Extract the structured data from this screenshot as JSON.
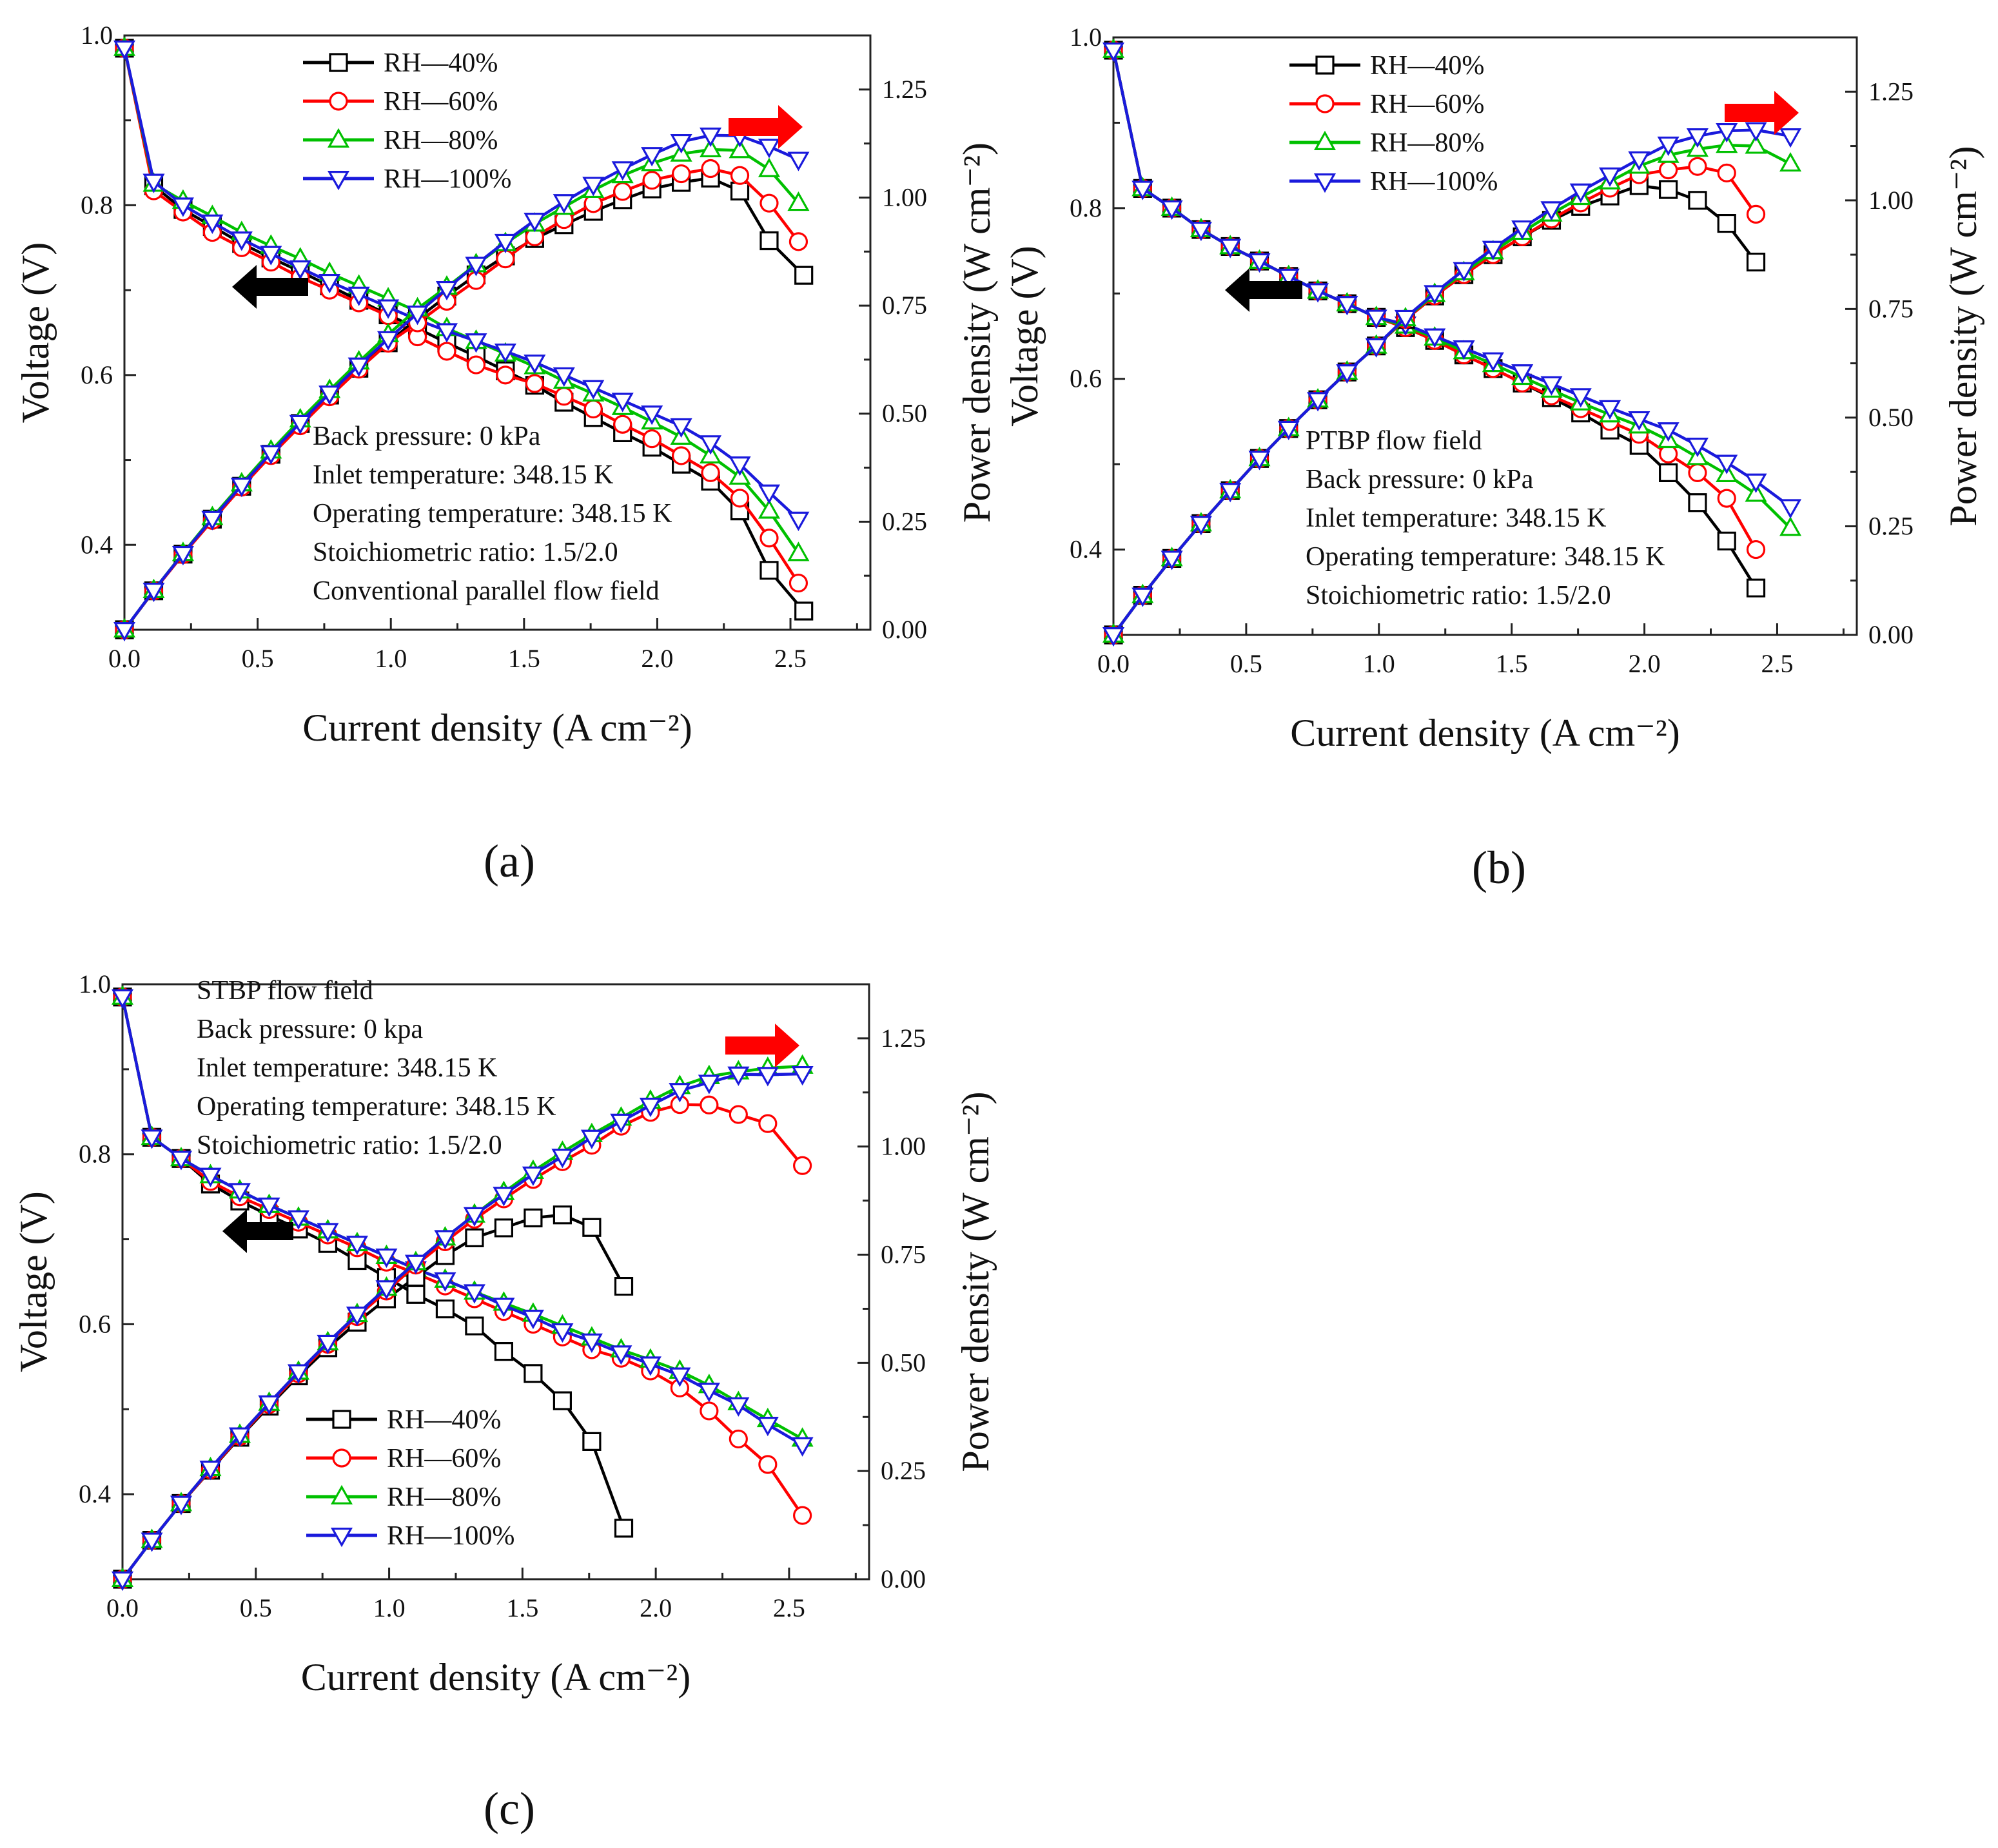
{
  "colors": {
    "RH—40%": "#000000",
    "RH—60%": "#ff0000",
    "RH—80%": "#00c000",
    "RH—100%": "#1a1adc",
    "arrow_left": "#000000",
    "arrow_right": "#ff0000"
  },
  "markers": {
    "RH—40%": "square",
    "RH—60%": "circle",
    "RH—80%": "triangle-up",
    "RH—100%": "triangle-down"
  },
  "chart_data": [
    {
      "type": "line",
      "panel_label": "(a)",
      "xlabel": "Current density (A cm⁻²)",
      "ylabel_left": "Voltage (V)",
      "ylabel_right": "Power density (W cm⁻²)",
      "xlim": [
        0,
        2.8
      ],
      "ylim_left": [
        0.3,
        1.0
      ],
      "ylim_right": [
        0,
        1.375
      ],
      "xticks": [
        "0.0",
        "0.5",
        "1.0",
        "1.5",
        "2.0",
        "2.5"
      ],
      "yticks_left": [
        "0.4",
        "0.6",
        "0.8",
        "1.0"
      ],
      "yticks_right": [
        "0.00",
        "0.25",
        "0.50",
        "0.75",
        "1.00",
        "1.25"
      ],
      "legend_position": "top-left",
      "annotation": [
        "Back pressure: 0 kPa",
        "Inlet temperature: 348.15 K",
        "Operating temperature: 348.15 K",
        "Stoichiometric ratio: 1.5/2.0",
        "Conventional parallel flow field"
      ],
      "x": [
        0.0,
        0.11,
        0.22,
        0.33,
        0.44,
        0.55,
        0.66,
        0.77,
        0.88,
        0.99,
        1.1,
        1.21,
        1.32,
        1.43,
        1.54,
        1.65,
        1.76,
        1.87,
        1.98,
        2.09,
        2.2,
        2.31,
        2.42,
        2.53
      ],
      "x_per_series": {
        "RH—40%": [
          0.0,
          0.11,
          0.22,
          0.33,
          0.44,
          0.55,
          0.66,
          0.77,
          0.88,
          0.99,
          1.1,
          1.21,
          1.32,
          1.43,
          1.54,
          1.65,
          1.76,
          1.87,
          1.98,
          2.09,
          2.2,
          2.31,
          2.42,
          2.55
        ]
      },
      "voltage_series": [
        {
          "name": "RH—40%",
          "values": [
            0.985,
            0.823,
            0.795,
            0.775,
            0.755,
            0.738,
            0.722,
            0.705,
            0.688,
            0.671,
            0.655,
            0.638,
            0.622,
            0.605,
            0.588,
            0.568,
            0.55,
            0.532,
            0.515,
            0.495,
            0.475,
            0.44,
            0.37,
            0.322
          ]
        },
        {
          "name": "RH—60%",
          "values": [
            0.985,
            0.817,
            0.792,
            0.768,
            0.75,
            0.733,
            0.715,
            0.7,
            0.685,
            0.67,
            0.645,
            0.628,
            0.612,
            0.6,
            0.59,
            0.575,
            0.56,
            0.542,
            0.525,
            0.505,
            0.485,
            0.455,
            0.408,
            0.355
          ]
        },
        {
          "name": "RH—80%",
          "values": [
            0.985,
            0.825,
            0.805,
            0.787,
            0.768,
            0.752,
            0.737,
            0.72,
            0.705,
            0.69,
            0.675,
            0.655,
            0.64,
            0.625,
            0.61,
            0.593,
            0.578,
            0.562,
            0.545,
            0.527,
            0.505,
            0.48,
            0.44,
            0.39
          ]
        },
        {
          "name": "RH—100%",
          "values": [
            0.985,
            0.828,
            0.8,
            0.78,
            0.76,
            0.743,
            0.726,
            0.71,
            0.695,
            0.68,
            0.665,
            0.652,
            0.64,
            0.628,
            0.615,
            0.6,
            0.585,
            0.57,
            0.555,
            0.54,
            0.52,
            0.495,
            0.462,
            0.43
          ]
        }
      ],
      "power_series": [
        {
          "name": "RH—40%",
          "values": [
            0.0,
            0.09,
            0.175,
            0.256,
            0.332,
            0.406,
            0.477,
            0.543,
            0.605,
            0.664,
            0.72,
            0.772,
            0.821,
            0.865,
            0.905,
            0.937,
            0.968,
            0.995,
            1.02,
            1.035,
            1.045,
            1.015,
            0.9,
            0.82
          ]
        },
        {
          "name": "RH—60%",
          "values": [
            0.0,
            0.09,
            0.174,
            0.253,
            0.33,
            0.403,
            0.472,
            0.539,
            0.603,
            0.663,
            0.71,
            0.76,
            0.808,
            0.858,
            0.909,
            0.949,
            0.986,
            1.014,
            1.04,
            1.055,
            1.067,
            1.051,
            0.987,
            0.898
          ]
        },
        {
          "name": "RH—80%",
          "values": [
            0.0,
            0.091,
            0.177,
            0.26,
            0.338,
            0.414,
            0.486,
            0.554,
            0.62,
            0.683,
            0.743,
            0.793,
            0.845,
            0.894,
            0.939,
            0.978,
            1.017,
            1.051,
            1.079,
            1.101,
            1.111,
            1.109,
            1.065,
            0.987
          ]
        },
        {
          "name": "RH—100%",
          "values": [
            0.0,
            0.091,
            0.176,
            0.257,
            0.334,
            0.409,
            0.479,
            0.547,
            0.612,
            0.673,
            0.732,
            0.789,
            0.845,
            0.898,
            0.947,
            0.99,
            1.03,
            1.066,
            1.099,
            1.129,
            1.144,
            1.143,
            1.118,
            1.088
          ]
        }
      ]
    },
    {
      "type": "line",
      "panel_label": "(b)",
      "xlabel": "Current density (A cm⁻²)",
      "ylabel_left": "Voltage (V)",
      "ylabel_right": "Power density (W cm⁻²)",
      "xlim": [
        0,
        2.8
      ],
      "ylim_left": [
        0.3,
        1.0
      ],
      "ylim_right": [
        0,
        1.375
      ],
      "xticks": [
        "0.0",
        "0.5",
        "1.0",
        "1.5",
        "2.0",
        "2.5"
      ],
      "yticks_left": [
        "0.4",
        "0.6",
        "0.8",
        "1.0"
      ],
      "yticks_right": [
        "0.00",
        "0.25",
        "0.50",
        "0.75",
        "1.00",
        "1.25"
      ],
      "legend_position": "top-left",
      "annotation": [
        "PTBP flow field",
        "Back pressure: 0 kPa",
        "Inlet temperature: 348.15 K",
        "Operating temperature: 348.15 K",
        "Stoichiometric ratio: 1.5/2.0"
      ],
      "x": [
        0.0,
        0.11,
        0.22,
        0.33,
        0.44,
        0.55,
        0.66,
        0.77,
        0.88,
        0.99,
        1.1,
        1.21,
        1.32,
        1.43,
        1.54,
        1.65,
        1.76,
        1.87,
        1.98,
        2.09,
        2.2,
        2.31,
        2.42,
        2.55
      ],
      "x_per_series": {
        "RH—40%": [
          0.0,
          0.11,
          0.22,
          0.33,
          0.44,
          0.55,
          0.66,
          0.77,
          0.88,
          0.99,
          1.1,
          1.21,
          1.32,
          1.43,
          1.54,
          1.65,
          1.76,
          1.87,
          1.98,
          2.09,
          2.2,
          2.31,
          2.42
        ],
        "RH—60%": [
          0.0,
          0.11,
          0.22,
          0.33,
          0.44,
          0.55,
          0.66,
          0.77,
          0.88,
          0.99,
          1.1,
          1.21,
          1.32,
          1.43,
          1.54,
          1.65,
          1.76,
          1.87,
          1.98,
          2.09,
          2.2,
          2.31,
          2.42
        ]
      },
      "voltage_series": [
        {
          "name": "RH—40%",
          "values": [
            0.985,
            0.823,
            0.8,
            0.775,
            0.755,
            0.738,
            0.72,
            0.703,
            0.688,
            0.672,
            0.66,
            0.645,
            0.628,
            0.612,
            0.595,
            0.578,
            0.56,
            0.54,
            0.522,
            0.49,
            0.455,
            0.41,
            0.355
          ]
        },
        {
          "name": "RH—60%",
          "values": [
            0.985,
            0.823,
            0.8,
            0.775,
            0.755,
            0.738,
            0.72,
            0.703,
            0.688,
            0.672,
            0.66,
            0.645,
            0.628,
            0.612,
            0.595,
            0.58,
            0.565,
            0.55,
            0.535,
            0.512,
            0.49,
            0.46,
            0.4
          ]
        },
        {
          "name": "RH—80%",
          "values": [
            0.985,
            0.823,
            0.8,
            0.775,
            0.755,
            0.738,
            0.72,
            0.703,
            0.688,
            0.672,
            0.662,
            0.648,
            0.632,
            0.617,
            0.602,
            0.587,
            0.572,
            0.558,
            0.545,
            0.528,
            0.508,
            0.488,
            0.465,
            0.425
          ]
        },
        {
          "name": "RH—100%",
          "values": [
            0.985,
            0.823,
            0.8,
            0.775,
            0.755,
            0.738,
            0.72,
            0.703,
            0.688,
            0.672,
            0.664,
            0.65,
            0.636,
            0.622,
            0.608,
            0.594,
            0.58,
            0.566,
            0.553,
            0.54,
            0.522,
            0.502,
            0.48,
            0.45
          ]
        }
      ],
      "power_series": [
        {
          "name": "RH—40%",
          "values": [
            0.0,
            0.091,
            0.176,
            0.256,
            0.332,
            0.406,
            0.475,
            0.541,
            0.605,
            0.665,
            0.726,
            0.78,
            0.829,
            0.875,
            0.916,
            0.954,
            0.986,
            1.01,
            1.034,
            1.025,
            1.0,
            0.947,
            0.858
          ]
        },
        {
          "name": "RH—60%",
          "values": [
            0.0,
            0.091,
            0.176,
            0.256,
            0.332,
            0.406,
            0.475,
            0.541,
            0.605,
            0.665,
            0.726,
            0.78,
            0.829,
            0.875,
            0.916,
            0.957,
            0.994,
            1.028,
            1.059,
            1.07,
            1.078,
            1.063,
            0.968
          ]
        },
        {
          "name": "RH—80%",
          "values": [
            0.0,
            0.091,
            0.176,
            0.256,
            0.332,
            0.406,
            0.475,
            0.541,
            0.605,
            0.665,
            0.728,
            0.784,
            0.834,
            0.882,
            0.927,
            0.969,
            1.007,
            1.043,
            1.079,
            1.104,
            1.118,
            1.127,
            1.125,
            1.084
          ]
        },
        {
          "name": "RH—100%",
          "values": [
            0.0,
            0.091,
            0.176,
            0.256,
            0.332,
            0.406,
            0.475,
            0.541,
            0.605,
            0.665,
            0.73,
            0.787,
            0.84,
            0.889,
            0.936,
            0.98,
            1.021,
            1.058,
            1.095,
            1.129,
            1.148,
            1.16,
            1.162,
            1.148
          ]
        }
      ]
    },
    {
      "type": "line",
      "panel_label": "(c)",
      "xlabel": "Current density (A cm⁻²)",
      "ylabel_left": "Voltage (V)",
      "ylabel_right": "Power density (W cm⁻²)",
      "xlim": [
        0,
        2.8
      ],
      "ylim_left": [
        0.3,
        1.0
      ],
      "ylim_right": [
        0,
        1.375
      ],
      "xticks": [
        "0.0",
        "0.5",
        "1.0",
        "1.5",
        "2.0",
        "2.5"
      ],
      "yticks_left": [
        "0.4",
        "0.6",
        "0.8",
        "1.0"
      ],
      "yticks_right": [
        "0.00",
        "0.25",
        "0.50",
        "0.75",
        "1.00",
        "1.25"
      ],
      "legend_position": "bottom-left",
      "annotation": [
        "STBP flow field",
        "Back pressure: 0 kpa",
        "Inlet temperature: 348.15 K",
        "Operating temperature: 348.15 K",
        "Stoichiometric ratio: 1.5/2.0"
      ],
      "x": [
        0.0,
        0.11,
        0.22,
        0.33,
        0.44,
        0.55,
        0.66,
        0.77,
        0.88,
        0.99,
        1.1,
        1.21,
        1.32,
        1.43,
        1.54,
        1.65,
        1.76,
        1.87,
        1.98,
        2.09,
        2.2,
        2.31,
        2.42,
        2.55
      ],
      "x_per_series": {
        "RH—40%": [
          0.0,
          0.11,
          0.22,
          0.33,
          0.44,
          0.55,
          0.66,
          0.77,
          0.88,
          0.99,
          1.1,
          1.21,
          1.32,
          1.43,
          1.54,
          1.65,
          1.76,
          1.88
        ]
      },
      "voltage_series": [
        {
          "name": "RH—40%",
          "values": [
            0.985,
            0.82,
            0.795,
            0.765,
            0.745,
            0.728,
            0.712,
            0.695,
            0.675,
            0.655,
            0.635,
            0.618,
            0.598,
            0.568,
            0.542,
            0.51,
            0.462,
            0.36
          ]
        },
        {
          "name": "RH—60%",
          "values": [
            0.985,
            0.82,
            0.795,
            0.768,
            0.75,
            0.735,
            0.72,
            0.705,
            0.69,
            0.673,
            0.66,
            0.645,
            0.63,
            0.615,
            0.6,
            0.585,
            0.57,
            0.56,
            0.545,
            0.525,
            0.498,
            0.465,
            0.435,
            0.375
          ]
        },
        {
          "name": "RH—80%",
          "values": [
            0.985,
            0.82,
            0.795,
            0.775,
            0.757,
            0.74,
            0.725,
            0.71,
            0.695,
            0.68,
            0.665,
            0.652,
            0.638,
            0.625,
            0.612,
            0.598,
            0.584,
            0.57,
            0.558,
            0.545,
            0.528,
            0.508,
            0.488,
            0.465
          ]
        },
        {
          "name": "RH—100%",
          "values": [
            0.985,
            0.82,
            0.795,
            0.775,
            0.757,
            0.74,
            0.725,
            0.71,
            0.695,
            0.68,
            0.665,
            0.652,
            0.638,
            0.622,
            0.608,
            0.592,
            0.58,
            0.566,
            0.553,
            0.54,
            0.522,
            0.505,
            0.482,
            0.458
          ]
        }
      ],
      "power_series": [
        {
          "name": "RH—40%",
          "values": [
            0.0,
            0.09,
            0.175,
            0.252,
            0.328,
            0.4,
            0.47,
            0.535,
            0.594,
            0.648,
            0.698,
            0.748,
            0.789,
            0.812,
            0.835,
            0.842,
            0.813,
            0.677
          ]
        },
        {
          "name": "RH—60%",
          "values": [
            0.0,
            0.09,
            0.175,
            0.253,
            0.33,
            0.404,
            0.475,
            0.543,
            0.607,
            0.666,
            0.726,
            0.78,
            0.832,
            0.879,
            0.924,
            0.965,
            1.003,
            1.047,
            1.079,
            1.097,
            1.096,
            1.074,
            1.053,
            0.956
          ]
        },
        {
          "name": "RH—80%",
          "values": [
            0.0,
            0.09,
            0.175,
            0.256,
            0.333,
            0.407,
            0.479,
            0.547,
            0.612,
            0.673,
            0.732,
            0.789,
            0.842,
            0.894,
            0.943,
            0.987,
            1.028,
            1.066,
            1.105,
            1.139,
            1.162,
            1.173,
            1.181,
            1.186
          ]
        },
        {
          "name": "RH—100%",
          "values": [
            0.0,
            0.09,
            0.175,
            0.256,
            0.333,
            0.407,
            0.479,
            0.547,
            0.612,
            0.673,
            0.732,
            0.789,
            0.842,
            0.889,
            0.936,
            0.977,
            1.021,
            1.058,
            1.095,
            1.129,
            1.148,
            1.167,
            1.166,
            1.168
          ]
        }
      ]
    }
  ]
}
